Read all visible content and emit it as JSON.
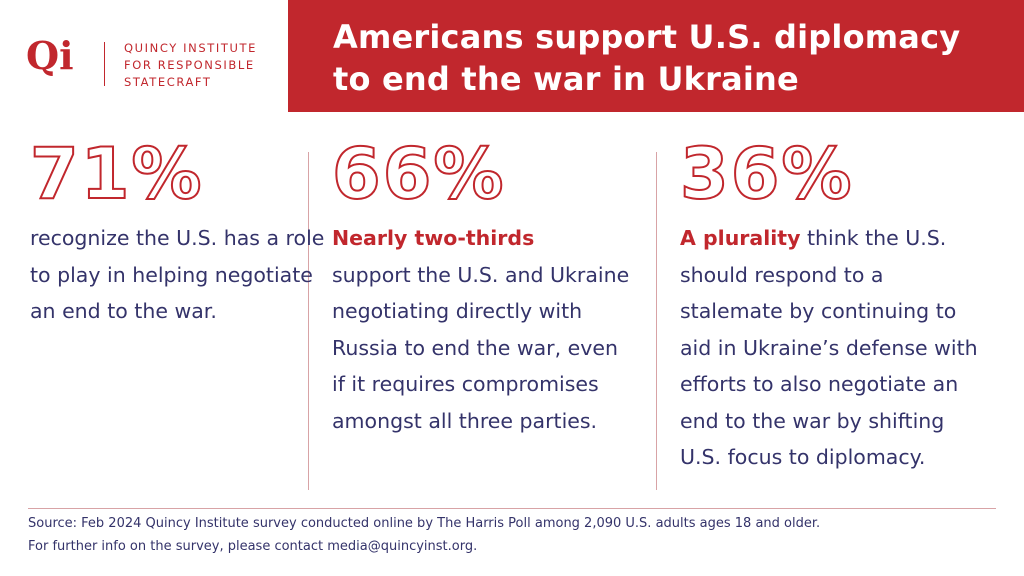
{
  "logo": {
    "mark": "Qi",
    "lines": [
      "QUINCY INSTITUTE",
      "FOR RESPONSIBLE",
      "STATECRAFT"
    ]
  },
  "title": "Americans support U.S. diplomacy to end the war in Ukraine",
  "columns": [
    {
      "stat": "71%",
      "text": "recognize the U.S. has a role to play in helping negotiate an end to the war."
    },
    {
      "stat": "66%",
      "lead": "Nearly two-thirds",
      "text": "support the U.S. and Ukraine negotiating directly with Russia to end the war, even if it requires compromises amongst all three parties."
    },
    {
      "stat": "36%",
      "lead": "A plurality",
      "text": "think the U.S. should respond to a stalemate by continuing to aid in Ukraine’s defense with efforts to also negotiate an end to the war by shifting U.S. focus to diplomacy."
    }
  ],
  "footer": [
    "Source: Feb 2024 Quincy Institute survey conducted online by The Harris Poll among 2,090 U.S. adults ages 18 and older.",
    "For further info on the survey, please contact media@quincyinst.org."
  ]
}
